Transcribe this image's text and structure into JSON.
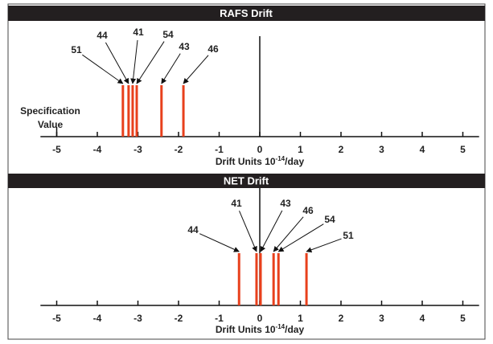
{
  "chart_data": [
    {
      "type": "spike",
      "title": "RAFS Drift",
      "xlabel": {
        "text": "Drift Units 10",
        "superscript": "-14",
        "suffix": "/day"
      },
      "categories": [
        "51",
        "44",
        "41",
        "54",
        "43",
        "46"
      ],
      "values": [
        -3.37,
        -3.23,
        -3.13,
        -3.03,
        -2.42,
        -1.88
      ],
      "color": "#e8401c",
      "annotation": {
        "text": [
          "Specification",
          "Value"
        ],
        "x": -5
      },
      "xlim": [
        -5.4,
        5.4
      ],
      "xticks": [
        -5,
        -4,
        -3,
        -2,
        -1,
        0,
        1,
        2,
        3,
        4,
        5
      ]
    },
    {
      "type": "spike",
      "title": "NET Drift",
      "xlabel": {
        "text": "Drift Units 10",
        "superscript": "-14",
        "suffix": "/day"
      },
      "categories": [
        "44",
        "41",
        "43",
        "46",
        "54",
        "51"
      ],
      "values": [
        -0.51,
        -0.08,
        0.02,
        0.34,
        0.46,
        1.15
      ],
      "color": "#e8401c",
      "xlim": [
        -5.4,
        5.4
      ],
      "xticks": [
        -5,
        -4,
        -3,
        -2,
        -1,
        0,
        1,
        2,
        3,
        4,
        5
      ]
    }
  ]
}
